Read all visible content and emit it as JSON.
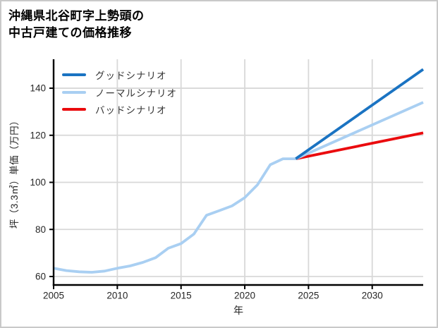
{
  "styles": {
    "background": "#ffffff",
    "border_color": "#c9c9c9",
    "grid_color": "#d8d8d8",
    "axis_color": "#000000",
    "tick_label_color": "#262626",
    "legend_text_color": "#333333",
    "accent_good": "#1a73c2",
    "accent_normal": "#a9cff2",
    "accent_bad": "#ea0b0e"
  },
  "chart_data": {
    "type": "line",
    "title": "沖縄県北谷町字上勢頭の\n中古戸建ての価格推移",
    "xlabel": "年",
    "ylabel": "坪（3.3㎡）単価（万円）",
    "xlim": [
      2005,
      2034
    ],
    "ylim": [
      56.4,
      152.3
    ],
    "xticks": [
      2005,
      2010,
      2015,
      2020,
      2025,
      2030
    ],
    "yticks": [
      60,
      80,
      100,
      120,
      140
    ],
    "grid": true,
    "legend": {
      "position": "top-left",
      "items": [
        {
          "label": "グッドシナリオ",
          "color": "#1a73c2"
        },
        {
          "label": "ノーマルシナリオ",
          "color": "#a9cff2"
        },
        {
          "label": "バッドシナリオ",
          "color": "#ea0b0e"
        }
      ]
    },
    "series": [
      {
        "name": "グッドシナリオ",
        "role": "forecast-good",
        "color": "#1a73c2",
        "width": 3.8,
        "z": 3,
        "x": [
          2024,
          2034
        ],
        "y": [
          110,
          148
        ]
      },
      {
        "name": "ノーマルシナリオ",
        "role": "history-and-forecast-normal",
        "color": "#a9cff2",
        "width": 3.8,
        "z": 2,
        "x": [
          2005,
          2006,
          2007,
          2008,
          2009,
          2010,
          2011,
          2012,
          2013,
          2014,
          2015,
          2016,
          2017,
          2018,
          2019,
          2020,
          2021,
          2022,
          2023,
          2024,
          2034
        ],
        "y": [
          63.5,
          62.5,
          62,
          61.8,
          62.3,
          63.5,
          64.5,
          66,
          68,
          72,
          74,
          78,
          86,
          88,
          90,
          93.5,
          99,
          107.5,
          110,
          110,
          134
        ]
      },
      {
        "name": "バッドシナリオ",
        "role": "forecast-bad",
        "color": "#ea0b0e",
        "width": 3.8,
        "z": 1,
        "x": [
          2024,
          2034
        ],
        "y": [
          110,
          121
        ]
      }
    ]
  }
}
